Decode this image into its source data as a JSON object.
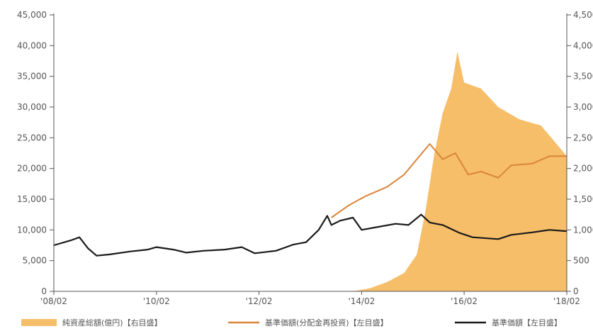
{
  "chart_data": {
    "type": "line",
    "title": "",
    "x": [
      "'08/02",
      "'10/02",
      "'12/02",
      "'14/02",
      "'16/02",
      "'18/02"
    ],
    "ylim_left": [
      0,
      45000
    ],
    "ylim_right": [
      0,
      4500
    ],
    "left_ticks": [
      "45,000",
      "40,000",
      "35,000",
      "30,000",
      "25,000",
      "20,000",
      "15,000",
      "10,000",
      "5,000",
      "0"
    ],
    "right_ticks": [
      "4,500",
      "4,000",
      "3,500",
      "3,000",
      "2,500",
      "2,000",
      "1,500",
      "1,000",
      "500",
      "0"
    ],
    "colors": {
      "area": "#F7BE6A",
      "reinvest": "#D9853B",
      "nav": "#1a1a1a"
    },
    "series": [
      {
        "name": "純資産総額(億円)【右目盛】",
        "type": "area",
        "axis": "right",
        "points": [
          [
            "2013-12-01",
            0
          ],
          [
            "2014-04-01",
            50
          ],
          [
            "2014-08-01",
            150
          ],
          [
            "2014-12-01",
            300
          ],
          [
            "2015-03-01",
            600
          ],
          [
            "2015-05-01",
            1300
          ],
          [
            "2015-07-01",
            2200
          ],
          [
            "2015-09-01",
            2900
          ],
          [
            "2015-11-01",
            3300
          ],
          [
            "2015-12-15",
            3900
          ],
          [
            "2016-02-01",
            3400
          ],
          [
            "2016-06-01",
            3300
          ],
          [
            "2016-10-01",
            3000
          ],
          [
            "2017-03-01",
            2800
          ],
          [
            "2017-08-01",
            2700
          ],
          [
            "2017-11-01",
            2450
          ],
          [
            "2018-02-01",
            2200
          ]
        ]
      },
      {
        "name": "基準価額(分配金再投資)【左目盛】",
        "type": "line",
        "axis": "left",
        "points": [
          [
            "2013-07-01",
            12000
          ],
          [
            "2013-11-01",
            14000
          ],
          [
            "2014-03-01",
            15500
          ],
          [
            "2014-08-01",
            17000
          ],
          [
            "2014-12-01",
            19000
          ],
          [
            "2015-03-01",
            21500
          ],
          [
            "2015-06-01",
            24000
          ],
          [
            "2015-09-01",
            21500
          ],
          [
            "2015-12-01",
            22500
          ],
          [
            "2016-03-01",
            19000
          ],
          [
            "2016-06-01",
            19500
          ],
          [
            "2016-10-01",
            18500
          ],
          [
            "2017-01-01",
            20500
          ],
          [
            "2017-06-01",
            20800
          ],
          [
            "2017-10-01",
            22000
          ],
          [
            "2018-02-01",
            22000
          ]
        ]
      },
      {
        "name": "基準価額【左目盛】",
        "type": "line",
        "axis": "left",
        "points": [
          [
            "2008-02-01",
            7500
          ],
          [
            "2008-06-01",
            8300
          ],
          [
            "2008-08-01",
            8800
          ],
          [
            "2008-10-01",
            7000
          ],
          [
            "2008-12-01",
            5800
          ],
          [
            "2009-03-01",
            6000
          ],
          [
            "2009-08-01",
            6500
          ],
          [
            "2009-12-01",
            6800
          ],
          [
            "2010-02-01",
            7200
          ],
          [
            "2010-06-01",
            6800
          ],
          [
            "2010-09-01",
            6300
          ],
          [
            "2011-01-01",
            6600
          ],
          [
            "2011-06-01",
            6800
          ],
          [
            "2011-10-01",
            7200
          ],
          [
            "2012-01-01",
            6200
          ],
          [
            "2012-06-01",
            6600
          ],
          [
            "2012-10-01",
            7600
          ],
          [
            "2013-01-01",
            8000
          ],
          [
            "2013-04-01",
            10000
          ],
          [
            "2013-06-01",
            12300
          ],
          [
            "2013-07-01",
            10800
          ],
          [
            "2013-09-01",
            11500
          ],
          [
            "2013-12-01",
            12000
          ],
          [
            "2014-02-01",
            10000
          ],
          [
            "2014-06-01",
            10500
          ],
          [
            "2014-10-01",
            11000
          ],
          [
            "2015-01-01",
            10800
          ],
          [
            "2015-04-01",
            12500
          ],
          [
            "2015-06-01",
            11200
          ],
          [
            "2015-09-01",
            10800
          ],
          [
            "2016-01-01",
            9500
          ],
          [
            "2016-04-01",
            8800
          ],
          [
            "2016-10-01",
            8500
          ],
          [
            "2017-01-01",
            9200
          ],
          [
            "2017-06-01",
            9600
          ],
          [
            "2017-10-01",
            10000
          ],
          [
            "2018-02-01",
            9800
          ]
        ]
      }
    ]
  },
  "legend": [
    {
      "label": "純資産総額(億円)【右目盛】",
      "color": "#F7BE6A",
      "kind": "band"
    },
    {
      "label": "基準価額(分配金再投資)【左目盛】",
      "color": "#D9853B",
      "kind": "line"
    },
    {
      "label": "基準価額【左目盛】",
      "color": "#1a1a1a",
      "kind": "line"
    }
  ]
}
